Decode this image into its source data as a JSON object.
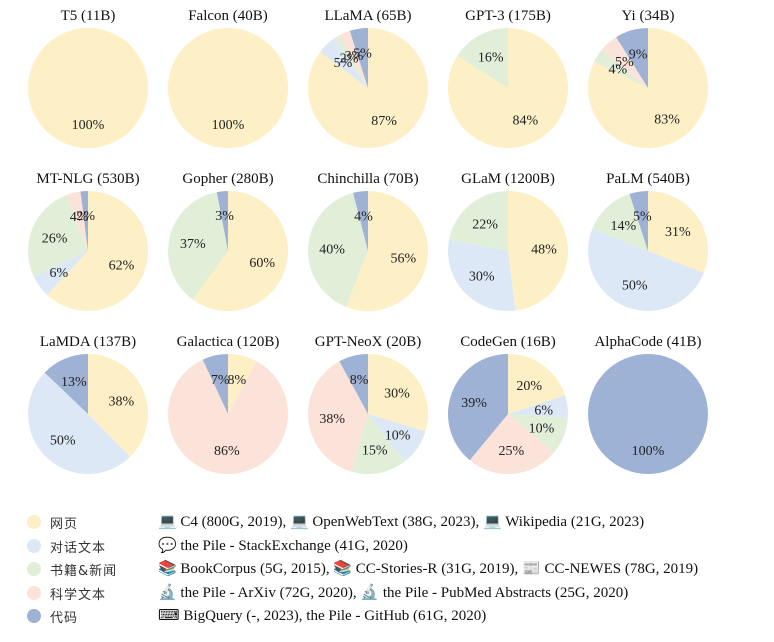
{
  "chart_data": [
    {
      "type": "pie",
      "title": "T5 (11B)",
      "slices": [
        {
          "category": "web",
          "value": 100,
          "label": "100%"
        }
      ]
    },
    {
      "type": "pie",
      "title": "Falcon (40B)",
      "slices": [
        {
          "category": "web",
          "value": 100,
          "label": "100%"
        }
      ]
    },
    {
      "type": "pie",
      "title": "LLaMA (65B)",
      "slices": [
        {
          "category": "web",
          "value": 87,
          "label": "87%"
        },
        {
          "category": "dialog",
          "value": 5,
          "label": "5%"
        },
        {
          "category": "books",
          "value": 2,
          "label": "2%"
        },
        {
          "category": "science",
          "value": 3,
          "label": "3%"
        },
        {
          "category": "code",
          "value": 5,
          "label": "5%"
        }
      ]
    },
    {
      "type": "pie",
      "title": "GPT-3 (175B)",
      "slices": [
        {
          "category": "web",
          "value": 84,
          "label": "84%"
        },
        {
          "category": "books",
          "value": 16,
          "label": "16%"
        }
      ]
    },
    {
      "type": "pie",
      "title": "Yi (34B)",
      "slices": [
        {
          "category": "web",
          "value": 83,
          "label": "83%"
        },
        {
          "category": "books",
          "value": 4,
          "label": "4%"
        },
        {
          "category": "science",
          "value": 5,
          "label": "5%"
        },
        {
          "category": "code",
          "value": 9,
          "label": "9%"
        }
      ]
    },
    {
      "type": "pie",
      "title": "MT-NLG (530B)",
      "slices": [
        {
          "category": "web",
          "value": 62,
          "label": "62%"
        },
        {
          "category": "dialog",
          "value": 6,
          "label": "6%"
        },
        {
          "category": "books",
          "value": 26,
          "label": "26%"
        },
        {
          "category": "science",
          "value": 4,
          "label": "4%"
        },
        {
          "category": "code",
          "value": 2,
          "label": "2%"
        }
      ]
    },
    {
      "type": "pie",
      "title": "Gopher (280B)",
      "slices": [
        {
          "category": "web",
          "value": 60,
          "label": "60%"
        },
        {
          "category": "books",
          "value": 37,
          "label": "37%"
        },
        {
          "category": "code",
          "value": 3,
          "label": "3%"
        }
      ]
    },
    {
      "type": "pie",
      "title": "Chinchilla (70B)",
      "slices": [
        {
          "category": "web",
          "value": 56,
          "label": "56%"
        },
        {
          "category": "books",
          "value": 40,
          "label": "40%"
        },
        {
          "category": "code",
          "value": 4,
          "label": "4%"
        }
      ]
    },
    {
      "type": "pie",
      "title": "GLaM (1200B)",
      "slices": [
        {
          "category": "web",
          "value": 48,
          "label": "48%"
        },
        {
          "category": "dialog",
          "value": 30,
          "label": "30%"
        },
        {
          "category": "books",
          "value": 22,
          "label": "22%"
        }
      ]
    },
    {
      "type": "pie",
      "title": "PaLM (540B)",
      "slices": [
        {
          "category": "web",
          "value": 31,
          "label": "31%"
        },
        {
          "category": "dialog",
          "value": 50,
          "label": "50%"
        },
        {
          "category": "books",
          "value": 14,
          "label": "14%"
        },
        {
          "category": "code",
          "value": 5,
          "label": "5%"
        }
      ]
    },
    {
      "type": "pie",
      "title": "LaMDA (137B)",
      "slices": [
        {
          "category": "web",
          "value": 38,
          "label": "38%"
        },
        {
          "category": "dialog",
          "value": 50,
          "label": "50%"
        },
        {
          "category": "code",
          "value": 13,
          "label": "13%"
        }
      ]
    },
    {
      "type": "pie",
      "title": "Galactica (120B)",
      "slices": [
        {
          "category": "web",
          "value": 8,
          "label": "8%"
        },
        {
          "category": "science",
          "value": 86,
          "label": "86%"
        },
        {
          "category": "code",
          "value": 7,
          "label": "7%"
        }
      ]
    },
    {
      "type": "pie",
      "title": "GPT-NeoX (20B)",
      "slices": [
        {
          "category": "web",
          "value": 30,
          "label": "30%"
        },
        {
          "category": "dialog",
          "value": 10,
          "label": "10%"
        },
        {
          "category": "books",
          "value": 15,
          "label": "15%"
        },
        {
          "category": "science",
          "value": 38,
          "label": "38%"
        },
        {
          "category": "code",
          "value": 8,
          "label": "8%"
        }
      ]
    },
    {
      "type": "pie",
      "title": "CodeGen (16B)",
      "slices": [
        {
          "category": "web",
          "value": 20,
          "label": "20%"
        },
        {
          "category": "dialog",
          "value": 6,
          "label": "6%"
        },
        {
          "category": "books",
          "value": 10,
          "label": "10%"
        },
        {
          "category": "science",
          "value": 25,
          "label": "25%"
        },
        {
          "category": "code",
          "value": 39,
          "label": "39%"
        }
      ]
    },
    {
      "type": "pie",
      "title": "AlphaCode (41B)",
      "slices": [
        {
          "category": "code",
          "value": 100,
          "label": "100%"
        }
      ]
    }
  ],
  "colors": {
    "web": "#fdefc6",
    "dialog": "#dce8f6",
    "books": "#e1efd9",
    "science": "#fbe3d9",
    "code": "#9eb2d6"
  },
  "legend": [
    {
      "category": "web",
      "label": "网页",
      "icons": [
        "laptop-icon",
        "laptop-icon",
        "laptop-icon"
      ],
      "source": "💻 C4 (800G, 2019), 💻 OpenWebText (38G, 2023), 💻 Wikipedia (21G, 2023)"
    },
    {
      "category": "dialog",
      "label": "对话文本",
      "icons": [
        "speech-bubble-icon"
      ],
      "source": "💬 the Pile - StackExchange (41G, 2020)"
    },
    {
      "category": "books",
      "label": "书籍&新闻",
      "icons": [
        "books-icon",
        "books-icon",
        "newspaper-icon"
      ],
      "source": "📚 BookCorpus (5G, 2015), 📚 CC-Stories-R (31G, 2019), 📰 CC-NEWES (78G, 2019)"
    },
    {
      "category": "science",
      "label": "科学文本",
      "icons": [
        "microscope-icon",
        "microscope-icon"
      ],
      "source": "🔬 the Pile - ArXiv (72G, 2020), 🔬 the Pile - PubMed Abstracts (25G, 2020)"
    },
    {
      "category": "code",
      "label": "代码",
      "icons": [
        "keyboard-icon"
      ],
      "source": "⌨ BigQuery (-, 2023), the Pile - GitHub (61G, 2020)"
    }
  ]
}
